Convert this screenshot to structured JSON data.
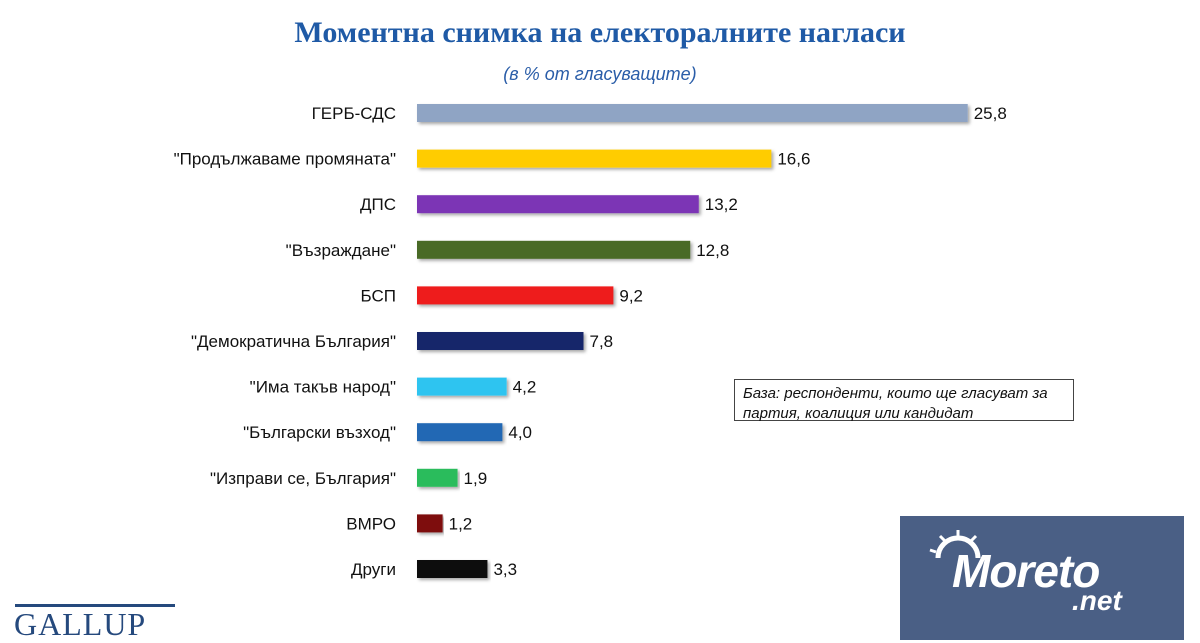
{
  "chart_data": {
    "type": "bar",
    "orientation": "horizontal",
    "title": "Моментна снимка на електоралните нагласи",
    "subtitle": "(в % от гласуващите)",
    "categories": [
      "ГЕРБ-СДС",
      "\"Продължаваме промяната\"",
      "ДПС",
      "\"Възраждане\"",
      "БСП",
      "\"Демократична България\"",
      "\"Има такъв народ\"",
      "\"Български възход\"",
      "\"Изправи се, България\"",
      "ВМРО",
      "Други"
    ],
    "values": [
      25.8,
      16.6,
      13.2,
      12.8,
      9.2,
      7.8,
      4.2,
      4.0,
      1.9,
      1.2,
      3.3
    ],
    "value_labels": [
      "25,8",
      "16,6",
      "13,2",
      "12,8",
      "9,2",
      "7,8",
      "4,2",
      "4,0",
      "1,9",
      "1,2",
      "3,3"
    ],
    "colors": [
      "#8fa4c4",
      "#ffcc00",
      "#7b35b5",
      "#4a6a28",
      "#ee1c1c",
      "#16286a",
      "#2ec4f0",
      "#2268b4",
      "#2cbc5c",
      "#7e1010",
      "#0a0a0a"
    ],
    "xlim": [
      0,
      26
    ],
    "grid": false,
    "legend": "none"
  },
  "note": "База: респонденти, които ще гласуват за партия, коалиция или кандидат",
  "logo": "GALLUP",
  "watermark": {
    "text": "Moreto",
    "sub": ".net"
  }
}
